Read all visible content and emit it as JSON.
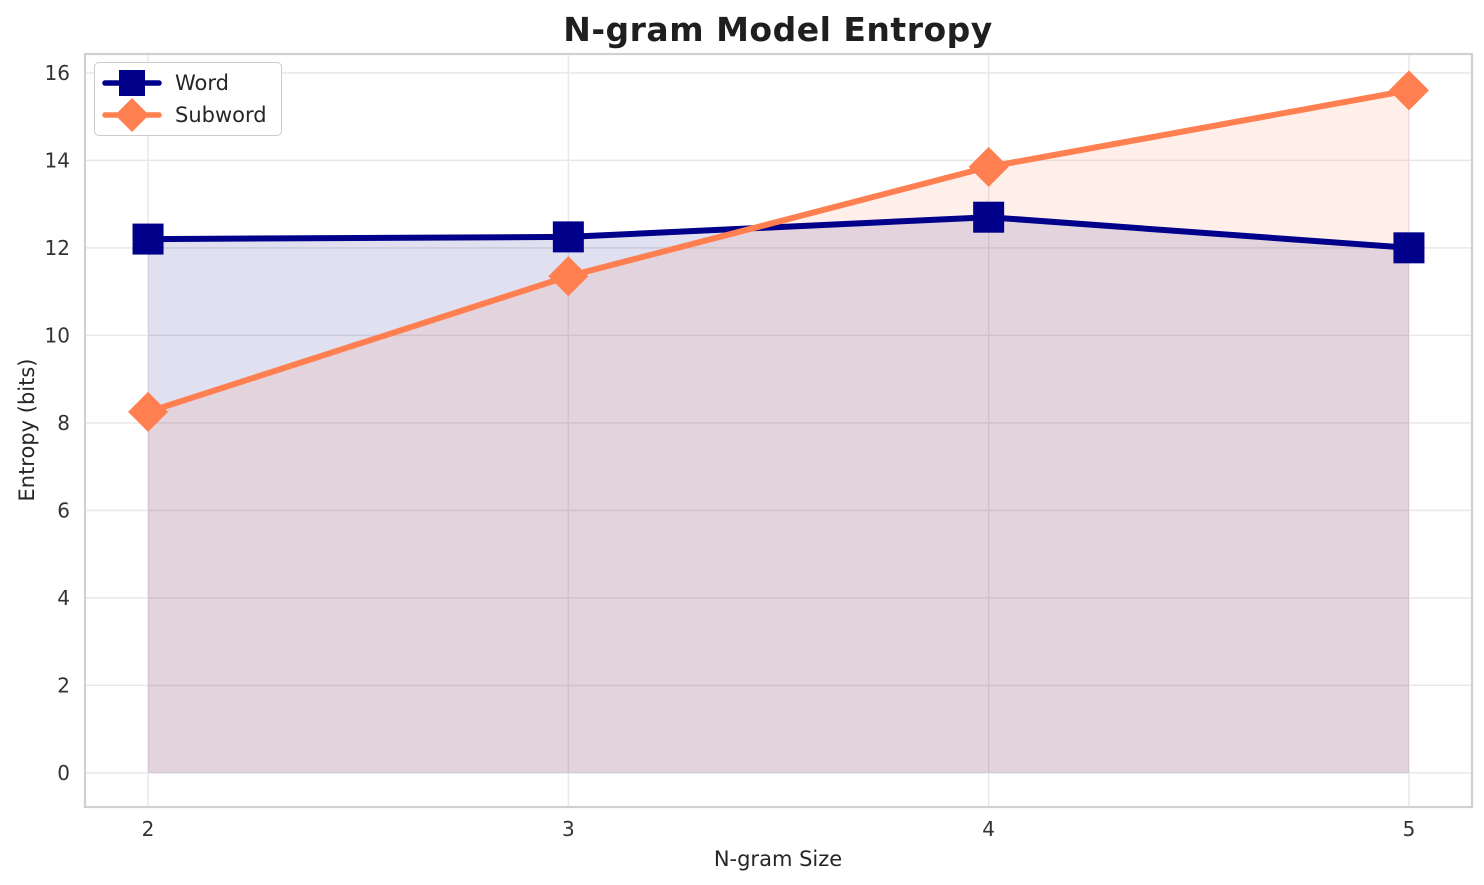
{
  "chart_data": {
    "type": "line",
    "title": "N-gram Model Entropy",
    "xlabel": "N-gram Size",
    "ylabel": "Entropy (bits)",
    "x": [
      2,
      3,
      4,
      5
    ],
    "series": [
      {
        "name": "Word",
        "values": [
          12.2,
          12.25,
          12.7,
          12.0
        ],
        "color": "#00008B",
        "marker": "square"
      },
      {
        "name": "Subword",
        "values": [
          8.25,
          11.35,
          13.85,
          15.6
        ],
        "color": "#FF7F50",
        "marker": "diamond"
      }
    ],
    "fill_to_baseline": 0,
    "fill_alpha": 0.12,
    "xticks": [
      2,
      3,
      4,
      5
    ],
    "yticks": [
      0,
      2,
      4,
      6,
      8,
      10,
      12,
      14,
      16
    ],
    "xlim": [
      1.85,
      5.15
    ],
    "ylim": [
      -0.78,
      16.43
    ],
    "grid": true,
    "legend_position": "upper left"
  },
  "colors": {
    "background": "#FFFFFF",
    "grid": "#E8E8E8",
    "spine": "#D0D0D0",
    "title_text": "#1F1F1F",
    "tick_text": "#333333",
    "label_text": "#262626",
    "word_series": "#00008B",
    "subword_series": "#FF7F50"
  }
}
